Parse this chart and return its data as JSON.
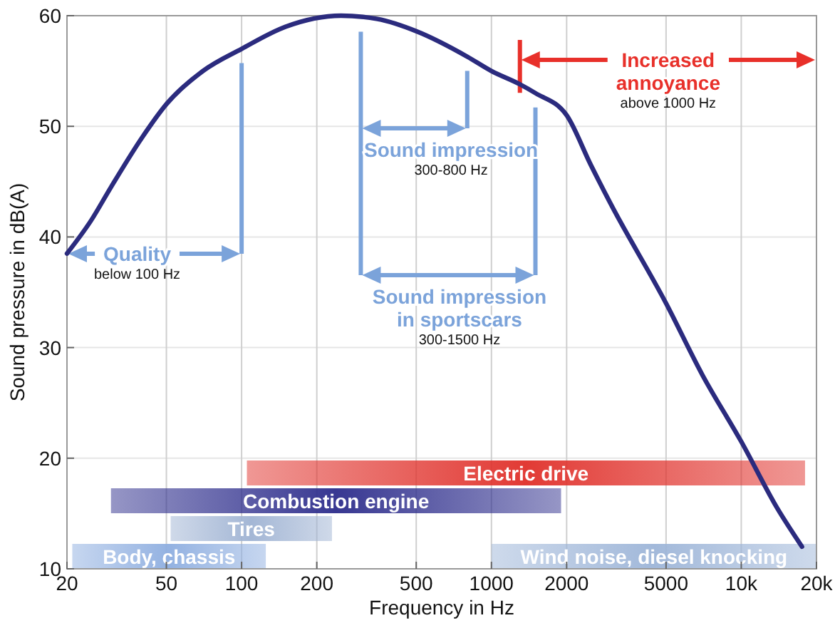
{
  "chart_data": {
    "type": "line",
    "xlabel": "Frequency in Hz",
    "ylabel": "Sound pressure in dB(A)",
    "xlim": [
      20,
      20000
    ],
    "ylim": [
      10,
      60
    ],
    "log": "x",
    "grid": true,
    "xticks": [
      20,
      50,
      100,
      200,
      500,
      1000,
      2000,
      5000,
      {
        "value": 10000,
        "label": "10k"
      },
      {
        "value": 20000,
        "label": "20k"
      }
    ],
    "yticks": [
      10,
      20,
      30,
      40,
      50,
      60
    ],
    "series": [
      {
        "color": "#2b2b7e",
        "x": [
          20,
          25,
          30,
          40,
          50,
          70,
          100,
          150,
          250,
          350,
          500,
          800,
          1000,
          1300,
          1500,
          2000,
          2500,
          3000,
          5000,
          7000,
          10000,
          14000,
          17500
        ],
        "values": [
          38.5,
          41.5,
          44.5,
          49,
          52,
          55,
          57,
          59,
          60,
          59.7,
          58.6,
          56.3,
          55,
          53.8,
          53,
          51,
          46.5,
          43,
          34,
          27.5,
          21.5,
          15.4,
          12
        ]
      }
    ],
    "ref_lines": [
      {
        "axis": "x",
        "value": 100,
        "color": "#7ba3da"
      },
      {
        "axis": "x",
        "value": 300,
        "color": "#7ba3da"
      },
      {
        "axis": "x",
        "value": 800,
        "color": "#7ba3da"
      },
      {
        "axis": "x",
        "value": 1500,
        "color": "#7ba3da"
      },
      {
        "axis": "x",
        "value": 1300,
        "color": "#e8302a"
      }
    ],
    "annotations": [
      "Quality\nbelow 100 Hz",
      "Sound impression\n300-800 Hz",
      "Sound impression\nin sportscars\n300-1500 Hz",
      "Increased\nannoyance\nabove 1000 Hz"
    ],
    "bands": [
      {
        "axis": "x",
        "from": 21,
        "to": 125,
        "label": "Body, chassis",
        "color": "#8eaee0"
      },
      {
        "axis": "x",
        "from": 1000,
        "to": 20000,
        "label": "Wind noise, diesel knocking",
        "color": "#9db5d8"
      },
      {
        "axis": "x",
        "from": 52,
        "to": 230,
        "label": "Tires",
        "color": "#9fb3d3"
      },
      {
        "axis": "x",
        "from": 30,
        "to": 1900,
        "label": "Combustion engine",
        "color": "#2d2d8c"
      },
      {
        "axis": "x",
        "from": 105,
        "to": 18000,
        "label": "Electric drive",
        "color": "#e0302a"
      }
    ]
  }
}
